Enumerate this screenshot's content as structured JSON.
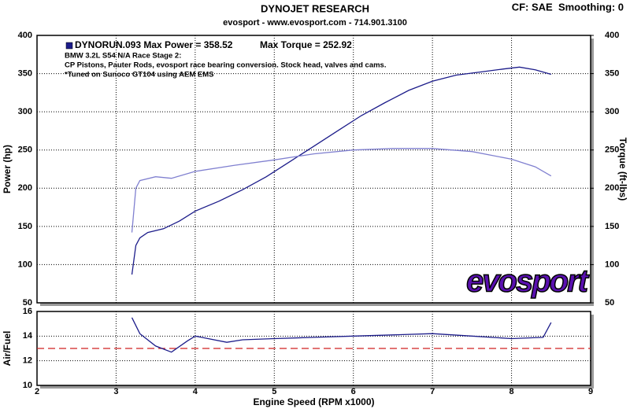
{
  "header": {
    "title": "DYNOJET RESEARCH",
    "subtitle": "evosport - www.evosport.com - 714.901.3100",
    "settings": "CF: SAE  Smoothing: 0"
  },
  "chart_data": [
    {
      "type": "line",
      "ylabel": "Power (hp)",
      "y2label": "Torque (ft-lbs)",
      "annotations": [
        "DYNORUN.093 Max Power = 358.52",
        "Max Torque = 252.92",
        "BMW 3.2L S54 N/A Race Stage 2:",
        "CP Pistons, Pauter Rods, evosport race bearing conversion.  Stock head, valves and cams.",
        "*Tuned on Sunoco GT104 using AEM EMS"
      ],
      "logo": "evosport",
      "xlim": [
        2,
        9
      ],
      "xticks": [
        2,
        3,
        4,
        5,
        6,
        7,
        8,
        9
      ],
      "ylim": [
        50,
        400
      ],
      "yticks": [
        50,
        100,
        150,
        200,
        250,
        300,
        350,
        400
      ],
      "y2lim": [
        50,
        400
      ],
      "y2ticks": [
        50,
        100,
        150,
        200,
        250,
        300,
        350,
        400
      ],
      "grid": true,
      "series": [
        {
          "color": "#1c1c8a",
          "axis": "y",
          "x": [
            3.2,
            3.25,
            3.3,
            3.4,
            3.6,
            3.8,
            4.0,
            4.3,
            4.6,
            4.9,
            5.2,
            5.5,
            5.8,
            6.1,
            6.4,
            6.7,
            7.0,
            7.3,
            7.6,
            7.9,
            8.1,
            8.3,
            8.5
          ],
          "values": [
            87,
            125,
            135,
            142,
            147,
            157,
            170,
            183,
            198,
            215,
            235,
            255,
            275,
            295,
            312,
            328,
            340,
            348,
            352,
            356,
            358.5,
            355,
            349
          ]
        },
        {
          "color": "#8080d0",
          "axis": "y2",
          "x": [
            3.2,
            3.25,
            3.3,
            3.5,
            3.7,
            4.0,
            4.5,
            5.0,
            5.5,
            6.0,
            6.5,
            7.0,
            7.5,
            8.0,
            8.3,
            8.5
          ],
          "values": [
            142,
            200,
            210,
            215,
            213,
            222,
            230,
            237,
            245,
            250,
            252,
            252,
            248,
            238,
            228,
            216
          ]
        }
      ]
    },
    {
      "type": "line",
      "ylabel": "Air/Fuel",
      "xlabel": "Engine Speed (RPM x1000)",
      "xlim": [
        2,
        9
      ],
      "xticks": [
        2,
        3,
        4,
        5,
        6,
        7,
        8,
        9
      ],
      "ylim": [
        10,
        16
      ],
      "yticks": [
        10,
        12,
        14,
        16
      ],
      "grid": true,
      "reference_line": {
        "value": 13,
        "color": "#d02020"
      },
      "series": [
        {
          "color": "#1c1c8a",
          "axis": "y",
          "x": [
            3.2,
            3.3,
            3.5,
            3.7,
            3.9,
            4.0,
            4.4,
            4.6,
            5.0,
            5.5,
            6.0,
            6.5,
            7.0,
            7.5,
            8.0,
            8.4,
            8.5
          ],
          "values": [
            15.5,
            14.2,
            13.2,
            12.7,
            13.6,
            14.0,
            13.5,
            13.7,
            13.8,
            13.9,
            14.0,
            14.1,
            14.2,
            14.0,
            13.8,
            13.9,
            15.1
          ]
        }
      ]
    }
  ]
}
